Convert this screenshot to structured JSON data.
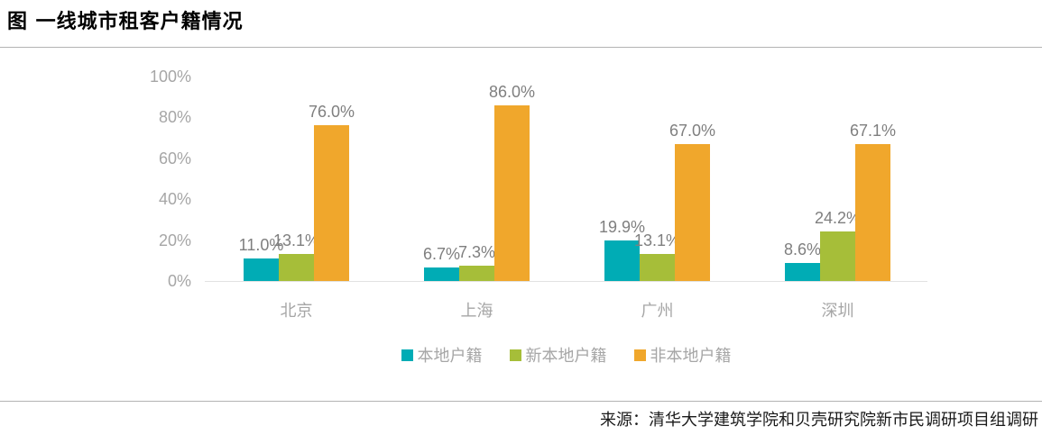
{
  "page": {
    "title": "图 一线城市租客户籍情况",
    "source": "来源：清华大学建筑学院和贝壳研究院新市民调研项目组调研"
  },
  "chart_data": {
    "type": "bar",
    "title": "图 一线城市租客户籍情况",
    "categories": [
      "北京",
      "上海",
      "广州",
      "深圳"
    ],
    "series": [
      {
        "name": "本地户籍",
        "color": "#00acb5",
        "values": [
          11.0,
          6.7,
          19.9,
          8.6
        ],
        "data_labels": [
          "11.0%",
          "6.7%",
          "19.9%",
          "8.6%"
        ]
      },
      {
        "name": "新本地户籍",
        "color": "#a6be39",
        "values": [
          13.1,
          7.3,
          13.1,
          24.2
        ],
        "data_labels": [
          "13.1%",
          "7.3%",
          "13.1%",
          "24.2%"
        ]
      },
      {
        "name": "非本地户籍",
        "color": "#f0a72c",
        "values": [
          76.0,
          86.0,
          67.0,
          67.1
        ],
        "data_labels": [
          "76.0%",
          "86.0%",
          "67.0%",
          "67.1%"
        ]
      }
    ],
    "y_axis": {
      "min": 0,
      "max": 100,
      "tick_values": [
        0,
        20,
        40,
        60,
        80,
        100
      ],
      "tick_labels": [
        "0%",
        "20%",
        "40%",
        "60%",
        "80%",
        "100%"
      ]
    },
    "grid": false,
    "legend_position": "bottom",
    "axis_label_color": "#a6a6a6",
    "data_label_color": "#7f7f7f",
    "source": "来源：清华大学建筑学院和贝壳研究院新市民调研项目组调研"
  }
}
